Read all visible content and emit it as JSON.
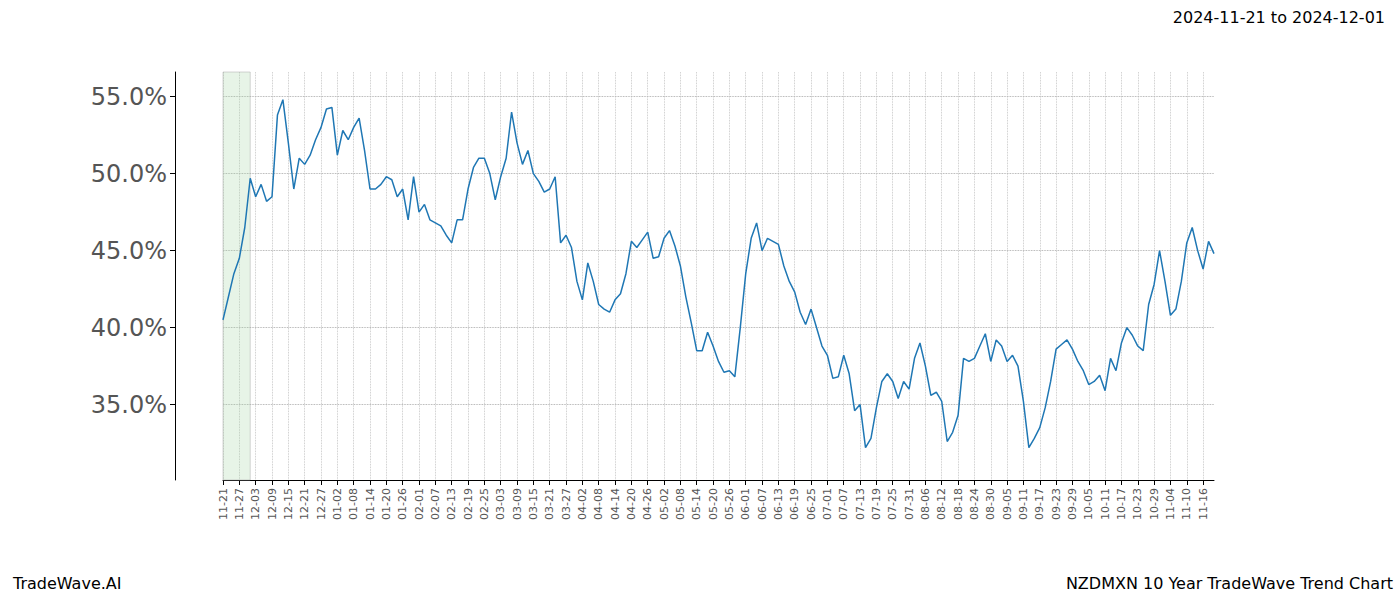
{
  "chart_data": {
    "type": "line",
    "title": "2024-11-21 to 2024-12-01",
    "footer_left": "TradeWave.AI",
    "footer_right": "NZDMXN 10 Year TradeWave Trend Chart",
    "color": "#1f77b4",
    "grid": true,
    "shaded_span": [
      0,
      5
    ],
    "ylim": [
      30.1,
      56.6
    ],
    "yticks": [
      {
        "value": 35,
        "label": "35.0%"
      },
      {
        "value": 40,
        "label": "40.0%"
      },
      {
        "value": 45,
        "label": "45.0%"
      },
      {
        "value": 50,
        "label": "50.0%"
      },
      {
        "value": 55,
        "label": "55.0%"
      }
    ],
    "categories": [
      "11-21",
      null,
      null,
      "11-27",
      null,
      null,
      "12-03",
      null,
      null,
      "12-09",
      null,
      null,
      "12-15",
      null,
      null,
      "12-21",
      null,
      null,
      "12-27",
      null,
      null,
      "01-02",
      null,
      null,
      "01-08",
      null,
      null,
      "01-14",
      null,
      null,
      "01-20",
      null,
      null,
      "01-26",
      null,
      null,
      "02-01",
      null,
      null,
      "02-07",
      null,
      null,
      "02-13",
      null,
      null,
      "02-19",
      null,
      null,
      "02-25",
      null,
      null,
      "03-03",
      null,
      null,
      "03-09",
      null,
      null,
      "03-15",
      null,
      null,
      "03-21",
      null,
      null,
      "03-27",
      null,
      null,
      "04-02",
      null,
      null,
      "04-08",
      null,
      null,
      "04-14",
      null,
      null,
      "04-20",
      null,
      null,
      "04-26",
      null,
      null,
      "05-02",
      null,
      null,
      "05-08",
      null,
      null,
      "05-14",
      null,
      null,
      "05-20",
      null,
      null,
      "05-26",
      null,
      null,
      "06-01",
      null,
      null,
      "06-07",
      null,
      null,
      "06-13",
      null,
      null,
      "06-19",
      null,
      null,
      "06-25",
      null,
      null,
      "07-01",
      null,
      null,
      "07-07",
      null,
      null,
      "07-13",
      null,
      null,
      "07-19",
      null,
      null,
      "07-25",
      null,
      null,
      "07-31",
      null,
      null,
      "08-06",
      null,
      null,
      "08-12",
      null,
      null,
      "08-18",
      null,
      null,
      "08-24",
      null,
      null,
      "08-30",
      null,
      null,
      "09-05",
      null,
      null,
      "09-11",
      null,
      null,
      "09-17",
      null,
      null,
      "09-23",
      null,
      null,
      "09-29",
      null,
      null,
      "10-05",
      null,
      null,
      "10-11",
      null,
      null,
      "10-17",
      null,
      null,
      "10-23",
      null,
      null,
      "10-29",
      null,
      null,
      "11-04",
      null,
      null,
      "11-10",
      null,
      null,
      "11-16",
      null,
      null
    ],
    "values": [
      40.5,
      42,
      43.5,
      44.5,
      46.5,
      49.7,
      48.5,
      49.3,
      48.2,
      48.5,
      53.8,
      54.8,
      52,
      49,
      51,
      50.6,
      51.2,
      52.2,
      53,
      54.2,
      54.3,
      51.2,
      52.8,
      52.2,
      53,
      53.6,
      51.5,
      49,
      49,
      49.3,
      49.8,
      49.6,
      48.5,
      49,
      47,
      49.8,
      47.5,
      48,
      47,
      46.8,
      46.6,
      46,
      45.5,
      47,
      47,
      49,
      50.4,
      51,
      51,
      50,
      48.3,
      49.8,
      51,
      54,
      52,
      50.6,
      51.5,
      50,
      49.5,
      48.8,
      49,
      49.8,
      45.5,
      46,
      45.2,
      43,
      41.8,
      44.2,
      43,
      41.5,
      41.2,
      41,
      41.8,
      42.2,
      43.5,
      45.6,
      45.2,
      45.7,
      46.2,
      44.5,
      44.6,
      45.8,
      46.3,
      45.3,
      44,
      42,
      40.3,
      38.5,
      38.5,
      39.7,
      38.8,
      37.8,
      37.1,
      37.2,
      36.8,
      40,
      43.5,
      45.8,
      46.8,
      45,
      45.8,
      45.6,
      45.4,
      44,
      43,
      42.3,
      41,
      40.2,
      41.2,
      40,
      38.8,
      38.2,
      36.7,
      36.8,
      38.2,
      37,
      34.6,
      35,
      32.2,
      32.8,
      34.8,
      36.5,
      37,
      36.5,
      35.4,
      36.5,
      36,
      38,
      39,
      37.5,
      35.6,
      35.8,
      35.2,
      32.6,
      33.2,
      34.3,
      38,
      37.8,
      38,
      38.8,
      39.6,
      37.8,
      39.2,
      38.8,
      37.8,
      38.2,
      37.5,
      35.2,
      32.2,
      32.8,
      33.5,
      34.8,
      36.5,
      38.6,
      38.9,
      39.2,
      38.6,
      37.8,
      37.2,
      36.3,
      36.5,
      36.9,
      35.9,
      38,
      37.2,
      39,
      40,
      39.5,
      38.8,
      38.5,
      41.5,
      42.8,
      45,
      43,
      40.8,
      41.2,
      43,
      45.5,
      46.5,
      45,
      43.8,
      45.6,
      44.8
    ]
  }
}
